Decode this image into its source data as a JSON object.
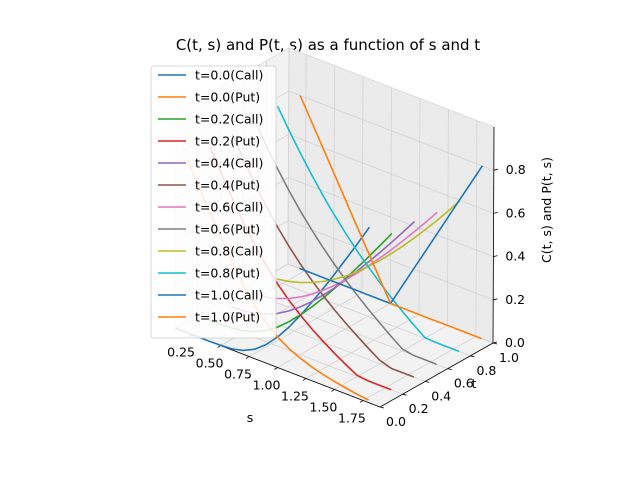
{
  "chart_data": {
    "type": "line",
    "title": "C(t, s) and P(t, s) as a function of s and t",
    "xlabel": "s",
    "ylabel": "t",
    "zlabel": "C(t, s) and P(t, s)",
    "xlim": [
      0.1,
      1.9
    ],
    "ylim": [
      0.0,
      1.0
    ],
    "zlim": [
      0.0,
      1.0
    ],
    "xticks": [
      "0.25",
      "0.50",
      "0.75",
      "1.00",
      "1.25",
      "1.50",
      "1.75"
    ],
    "yticks": [
      "0.0",
      "0.2",
      "0.4",
      "0.6",
      "0.8",
      "1.0"
    ],
    "zticks": [
      "0.0",
      "0.2",
      "0.4",
      "0.6",
      "0.8"
    ],
    "grid": true,
    "legend_position": "upper-left",
    "x": [
      0.2,
      0.3,
      0.4,
      0.5,
      0.6,
      0.7,
      0.8,
      0.9,
      1.0,
      1.1,
      1.2,
      1.3,
      1.4,
      1.5,
      1.6,
      1.7,
      1.8
    ],
    "series": [
      {
        "name": "t=0.0(Call)",
        "t": 0.0,
        "color": "#1f77b4",
        "values": [
          0.0,
          0.0,
          0.0,
          0.001,
          0.005,
          0.018,
          0.044,
          0.086,
          0.141,
          0.208,
          0.283,
          0.364,
          0.449,
          0.537,
          0.627,
          0.718,
          0.812
        ]
      },
      {
        "name": "t=0.0(Put)",
        "t": 0.0,
        "color": "#ff7f0e",
        "values": [
          0.8,
          0.7,
          0.6,
          0.501,
          0.405,
          0.318,
          0.244,
          0.186,
          0.141,
          0.108,
          0.083,
          0.064,
          0.049,
          0.037,
          0.027,
          0.018,
          0.012
        ]
      },
      {
        "name": "t=0.2(Call)",
        "t": 0.2,
        "color": "#2ca02c",
        "values": [
          0.0,
          0.0,
          0.002,
          0.009,
          0.025,
          0.051,
          0.087,
          0.132,
          0.184,
          0.241,
          0.303,
          0.368,
          0.436,
          0.506,
          0.577,
          0.65,
          0.724
        ]
      },
      {
        "name": "t=0.2(Put)",
        "t": 0.2,
        "color": "#d62728",
        "values": [
          0.8,
          0.7,
          0.602,
          0.509,
          0.425,
          0.351,
          0.287,
          0.232,
          0.184,
          0.141,
          0.103,
          0.068,
          0.036,
          0.006,
          0.0,
          0.0,
          0.0
        ]
      },
      {
        "name": "t=0.4(Call)",
        "t": 0.4,
        "color": "#9467bd",
        "values": [
          0.0,
          0.002,
          0.01,
          0.026,
          0.05,
          0.082,
          0.121,
          0.166,
          0.216,
          0.27,
          0.328,
          0.389,
          0.452,
          0.517,
          0.583,
          0.651,
          0.72
        ]
      },
      {
        "name": "t=0.4(Put)",
        "t": 0.4,
        "color": "#8c564b",
        "values": [
          0.8,
          0.702,
          0.61,
          0.526,
          0.45,
          0.382,
          0.321,
          0.266,
          0.216,
          0.17,
          0.128,
          0.089,
          0.052,
          0.017,
          0.0,
          0.0,
          0.0
        ]
      },
      {
        "name": "t=0.6(Call)",
        "t": 0.6,
        "color": "#e377c2",
        "values": [
          0.0,
          0.006,
          0.02,
          0.04,
          0.067,
          0.1,
          0.138,
          0.181,
          0.228,
          0.279,
          0.333,
          0.39,
          0.449,
          0.51,
          0.573,
          0.637,
          0.703
        ]
      },
      {
        "name": "t=0.6(Put)",
        "t": 0.6,
        "color": "#7f7f7f",
        "values": [
          0.8,
          0.706,
          0.62,
          0.54,
          0.467,
          0.4,
          0.338,
          0.281,
          0.228,
          0.179,
          0.133,
          0.09,
          0.049,
          0.01,
          0.0,
          0.0,
          0.0
        ]
      },
      {
        "name": "t=0.8(Call)",
        "t": 0.8,
        "color": "#bcbd22",
        "values": [
          0.01,
          0.02,
          0.035,
          0.055,
          0.08,
          0.11,
          0.145,
          0.185,
          0.23,
          0.278,
          0.33,
          0.385,
          0.443,
          0.503,
          0.565,
          0.63,
          0.697
        ]
      },
      {
        "name": "t=0.8(Put)",
        "t": 0.8,
        "color": "#17becf",
        "values": [
          0.81,
          0.72,
          0.635,
          0.555,
          0.48,
          0.41,
          0.345,
          0.285,
          0.23,
          0.178,
          0.13,
          0.085,
          0.043,
          0.003,
          0.0,
          0.0,
          0.0
        ]
      },
      {
        "name": "t=1.0(Call)",
        "t": 1.0,
        "color": "#1f77b4",
        "values": [
          0.0,
          0.0,
          0.0,
          0.0,
          0.0,
          0.0,
          0.0,
          0.0,
          0.0,
          0.1,
          0.2,
          0.3,
          0.4,
          0.5,
          0.6,
          0.7,
          0.8
        ]
      },
      {
        "name": "t=1.0(Put)",
        "t": 1.0,
        "color": "#ff7f0e",
        "values": [
          0.8,
          0.7,
          0.6,
          0.5,
          0.4,
          0.3,
          0.2,
          0.1,
          0.0,
          0.0,
          0.0,
          0.0,
          0.0,
          0.0,
          0.0,
          0.0,
          0.0
        ]
      }
    ]
  }
}
